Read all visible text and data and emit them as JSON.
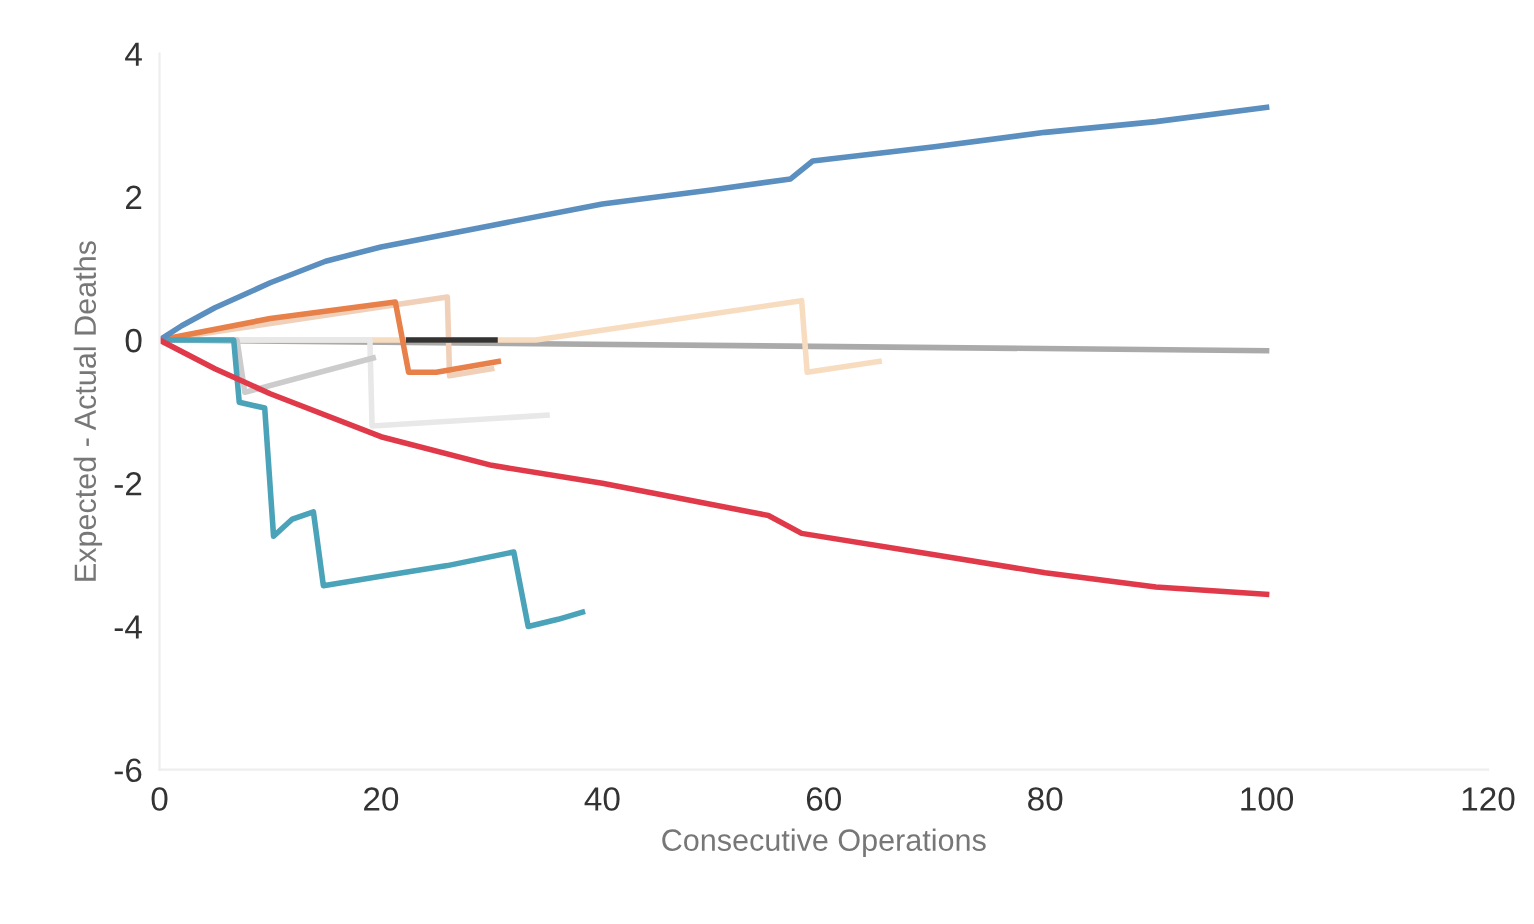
{
  "chart_data": {
    "type": "line",
    "xlabel": "Consecutive Operations",
    "ylabel": "Expected - Actual Deaths",
    "xlim": [
      0,
      120
    ],
    "xticks": [
      0,
      20,
      40,
      60,
      80,
      100,
      120
    ],
    "ylim": [
      -6,
      4
    ],
    "yticks": [
      -6,
      -4,
      -2,
      0,
      2,
      4
    ],
    "grid": false,
    "marker": "none",
    "line_style": "solid",
    "series": [
      {
        "color": "#aaaaaa",
        "x": [
          0,
          100
        ],
        "values": [
          0,
          -0.15
        ]
      },
      {
        "color": "#f8dcc0",
        "x": [
          0,
          34,
          58,
          58.5,
          65
        ],
        "values": [
          0,
          0,
          0.55,
          -0.45,
          -0.3
        ]
      },
      {
        "color": "#f0d0b8",
        "x": [
          0,
          26,
          26.2,
          30
        ],
        "values": [
          0,
          0.6,
          -0.5,
          -0.4
        ]
      },
      {
        "color": "#e8e8e8",
        "x": [
          0,
          19,
          19.2,
          35
        ],
        "values": [
          0,
          0,
          -1.2,
          -1.05
        ]
      },
      {
        "color": "#cccccc",
        "x": [
          0,
          7,
          7.7,
          19.3
        ],
        "values": [
          0,
          0,
          -0.73,
          -0.25
        ]
      },
      {
        "color": "#e8804a",
        "x": [
          0,
          10,
          21.3,
          22.5,
          25,
          30.6
        ],
        "values": [
          0,
          0.3,
          0.53,
          -0.45,
          -0.45,
          -0.3
        ]
      },
      {
        "color": "#333333",
        "x": [
          22.5,
          30.3
        ],
        "values": [
          0,
          0
        ]
      },
      {
        "color": "#4aa3b8",
        "x": [
          0,
          6.7,
          7.2,
          9.5,
          10.3,
          12,
          13.9,
          14.8,
          20,
          26,
          32,
          33.3,
          36,
          38.2
        ],
        "values": [
          0,
          0,
          -0.87,
          -0.95,
          -2.74,
          -2.5,
          -2.4,
          -3.43,
          -3.3,
          -3.15,
          -2.96,
          -4.0,
          -3.9,
          -3.8
        ]
      },
      {
        "color": "#5b8fc0",
        "x": [
          0,
          2,
          5,
          10,
          15,
          20,
          30,
          40,
          50,
          57,
          59,
          70,
          80,
          90,
          100
        ],
        "values": [
          0,
          0.2,
          0.45,
          0.8,
          1.1,
          1.3,
          1.6,
          1.9,
          2.1,
          2.25,
          2.5,
          2.7,
          2.9,
          3.05,
          3.25
        ]
      },
      {
        "color": "#e03a4a",
        "x": [
          0,
          5,
          10,
          20,
          30,
          40,
          50,
          55,
          58,
          70,
          80,
          90,
          100
        ],
        "values": [
          0,
          -0.4,
          -0.75,
          -1.35,
          -1.75,
          -2.0,
          -2.3,
          -2.45,
          -2.7,
          -3.0,
          -3.25,
          -3.45,
          -3.55
        ]
      }
    ]
  }
}
